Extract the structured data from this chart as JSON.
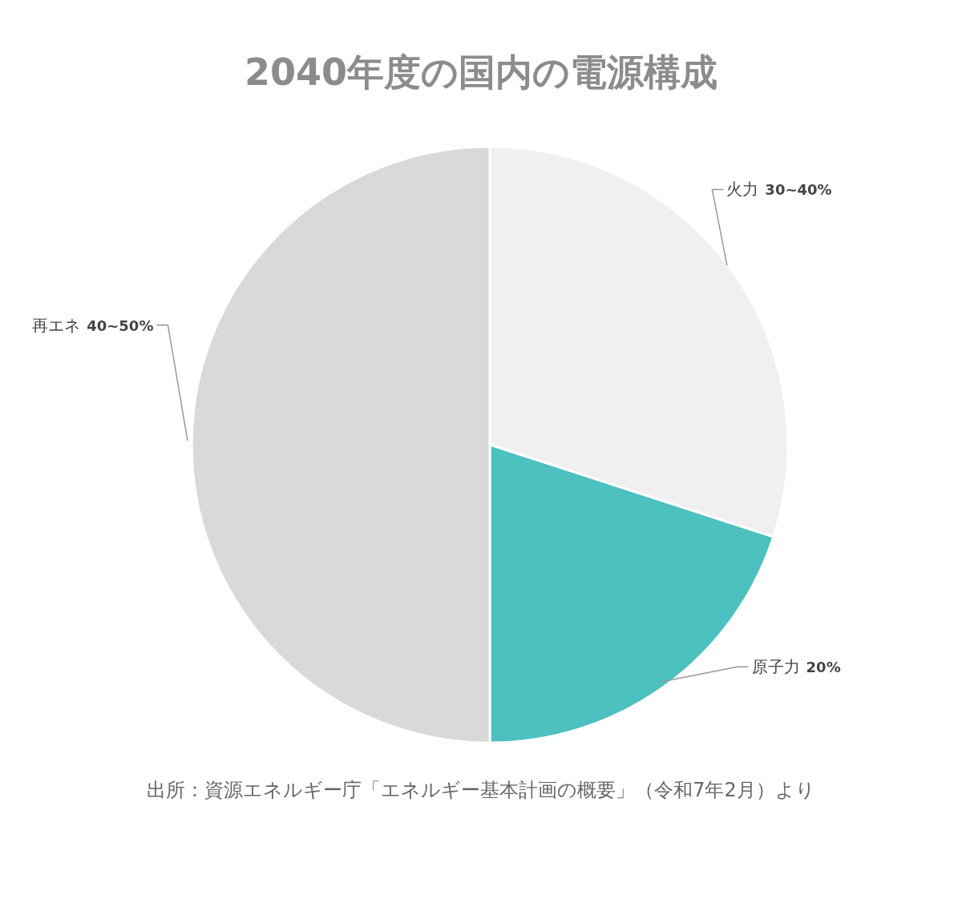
{
  "chart_data": {
    "type": "pie",
    "title": "2040年度の国内の電源構成",
    "categories": [
      "火力",
      "原子力",
      "再エネ"
    ],
    "values": [
      30,
      20,
      50
    ],
    "value_labels": [
      "30~40%",
      "20%",
      "40~50%"
    ],
    "colors": [
      "#f0f0f0",
      "#4dc0c0",
      "#d9d9d9"
    ],
    "annotations": [
      "出所：資源エネルギー庁「エネルギー基本計画の概要」（令和7年2月）より"
    ]
  }
}
